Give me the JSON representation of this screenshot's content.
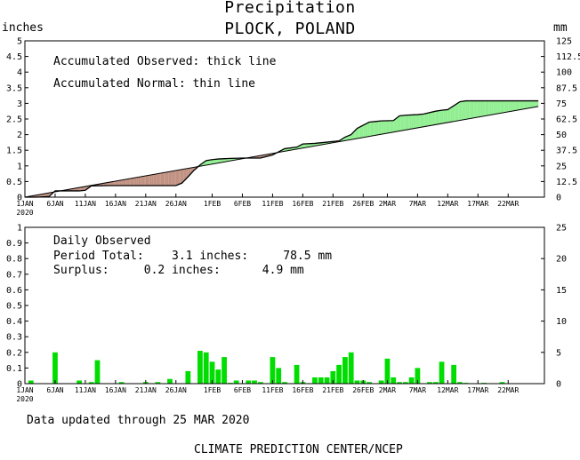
{
  "header": {
    "title": "Precipitation",
    "location": "PLOCK, POLAND",
    "unit_left": "inches",
    "unit_right": "mm"
  },
  "top_notes": {
    "line1": "Accumulated Observed: thick line",
    "line2": "Accumulated Normal: thin line"
  },
  "bottom_notes": {
    "line1": "Daily Observed",
    "line2": "Period Total:    3.1 inches:     78.5 mm",
    "line3": "Surplus:     0.2 inches:      4.9 mm"
  },
  "footer": {
    "updated": "Data updated through 25 MAR 2020",
    "credit": "CLIMATE PREDICTION CENTER/NCEP"
  },
  "colors": {
    "deficit_fill": "#c09080",
    "surplus_fill": "#90ee90",
    "daily_bar": "#00dd00",
    "line": "#000000"
  },
  "chart_data": [
    {
      "type": "area",
      "x_unit": "day of period (1 = 1 JAN 2020)",
      "xlim": [
        1,
        87
      ],
      "ylim": [
        0,
        5
      ],
      "y_ticks": [
        "0",
        "0.5",
        "1",
        "1.5",
        "2",
        "2.5",
        "3",
        "3.5",
        "4",
        "4.5",
        "5"
      ],
      "y2_ticks": [
        "0",
        "12.5",
        "25",
        "37.5",
        "50",
        "62.5",
        "75",
        "87.5",
        "100",
        "112.5",
        "125"
      ],
      "x_ticks": [
        {
          "day": 1,
          "label": "1JAN"
        },
        {
          "day": 6,
          "label": "6JAN"
        },
        {
          "day": 11,
          "label": "11JAN"
        },
        {
          "day": 16,
          "label": "16JAN"
        },
        {
          "day": 21,
          "label": "21JAN"
        },
        {
          "day": 26,
          "label": "26JAN"
        },
        {
          "day": 32,
          "label": "1FEB"
        },
        {
          "day": 37,
          "label": "6FEB"
        },
        {
          "day": 42,
          "label": "11FEB"
        },
        {
          "day": 47,
          "label": "16FEB"
        },
        {
          "day": 52,
          "label": "21FEB"
        },
        {
          "day": 57,
          "label": "26FEB"
        },
        {
          "day": 61,
          "label": "2MAR"
        },
        {
          "day": 66,
          "label": "7MAR"
        },
        {
          "day": 71,
          "label": "12MAR"
        },
        {
          "day": 76,
          "label": "17MAR"
        },
        {
          "day": 81,
          "label": "22MAR"
        }
      ],
      "year_label": "2020",
      "series": [
        {
          "values_day": [
            1,
            3,
            5,
            6,
            10,
            11,
            12,
            15,
            17,
            20,
            22,
            24,
            26,
            27,
            28,
            29,
            30,
            31,
            32,
            33,
            35,
            37,
            40,
            42,
            43,
            44,
            46,
            47,
            49,
            51,
            53,
            54,
            55,
            56,
            58,
            59,
            60,
            62,
            63,
            64,
            66,
            67,
            69,
            70,
            71,
            73,
            74,
            86
          ],
          "values": [
            0,
            0.0,
            0.02,
            0.2,
            0.2,
            0.22,
            0.36,
            0.37,
            0.37,
            0.37,
            0.37,
            0.37,
            0.37,
            0.45,
            0.65,
            0.86,
            1.03,
            1.17,
            1.2,
            1.22,
            1.24,
            1.25,
            1.25,
            1.35,
            1.45,
            1.55,
            1.6,
            1.7,
            1.72,
            1.76,
            1.8,
            1.92,
            2.0,
            2.2,
            2.4,
            2.42,
            2.44,
            2.45,
            2.6,
            2.62,
            2.64,
            2.66,
            2.75,
            2.78,
            2.8,
            3.05,
            3.08,
            3.08
          ]
        },
        {
          "values_day": [
            1,
            86
          ],
          "values": [
            0,
            2.9
          ]
        }
      ]
    },
    {
      "type": "bar",
      "x_unit": "day of period (1 = 1 JAN 2020)",
      "xlim": [
        1,
        87
      ],
      "ylim": [
        0,
        1
      ],
      "y_ticks": [
        "0",
        "0.1",
        "0.2",
        "0.3",
        "0.4",
        "0.5",
        "0.6",
        "0.7",
        "0.8",
        "0.9",
        "1"
      ],
      "y2_ticks": [
        "0",
        "5",
        "10",
        "15",
        "20",
        "25"
      ],
      "bars_day": [
        2,
        6,
        10,
        12,
        13,
        17,
        21,
        23,
        25,
        28,
        30,
        31,
        32,
        33,
        34,
        35,
        36,
        38,
        39,
        40,
        42,
        43,
        44,
        46,
        47,
        49,
        50,
        51,
        52,
        53,
        54,
        55,
        56,
        57,
        58,
        60,
        61,
        62,
        63,
        64,
        65,
        66,
        68,
        69,
        70,
        72,
        73,
        74,
        77,
        80
      ],
      "values": [
        0.02,
        0.2,
        0.02,
        0.01,
        0.15,
        0.01,
        0.01,
        0.01,
        0.03,
        0.08,
        0.21,
        0.2,
        0.14,
        0.09,
        0.17,
        0.005,
        0.02,
        0.02,
        0.02,
        0.01,
        0.17,
        0.1,
        0.01,
        0.12,
        0.01,
        0.04,
        0.04,
        0.04,
        0.08,
        0.12,
        0.17,
        0.2,
        0.02,
        0.02,
        0.01,
        0.02,
        0.16,
        0.04,
        0.01,
        0.01,
        0.04,
        0.1,
        0.01,
        0.01,
        0.14,
        0.12,
        0.01,
        0.005,
        0.005,
        0.01
      ]
    }
  ]
}
